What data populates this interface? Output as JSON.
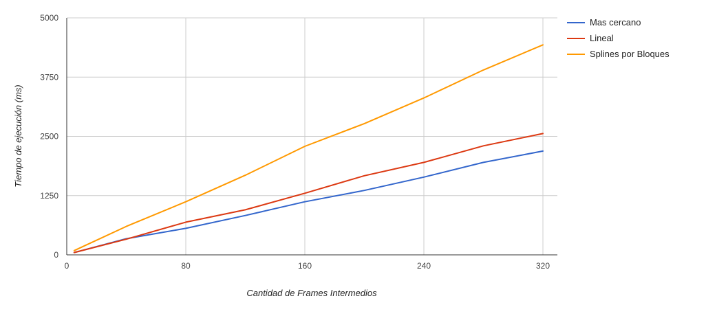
{
  "chart_data": {
    "type": "line",
    "title": "",
    "xlabel": "Cantidad de Frames Intermedios",
    "ylabel": "Tiempo de ejecución (ms)",
    "xlim": [
      0,
      330
    ],
    "ylim": [
      0,
      5000
    ],
    "x_ticks": [
      0,
      80,
      160,
      240,
      320
    ],
    "y_ticks": [
      0,
      1250,
      2500,
      3750,
      5000
    ],
    "grid": true,
    "legend_position": "right",
    "x": [
      5,
      40,
      80,
      120,
      160,
      200,
      240,
      280,
      320
    ],
    "series": [
      {
        "name": "Mas cercano",
        "color": "#3366cc",
        "values": [
          50,
          340,
          560,
          830,
          1120,
          1360,
          1640,
          1950,
          2190
        ]
      },
      {
        "name": "Lineal",
        "color": "#dc3912",
        "values": [
          50,
          330,
          690,
          950,
          1300,
          1670,
          1950,
          2300,
          2560
        ]
      },
      {
        "name": "Splines por Bloques",
        "color": "#ff9900",
        "values": [
          90,
          600,
          1120,
          1680,
          2290,
          2770,
          3310,
          3900,
          4430
        ]
      }
    ]
  }
}
